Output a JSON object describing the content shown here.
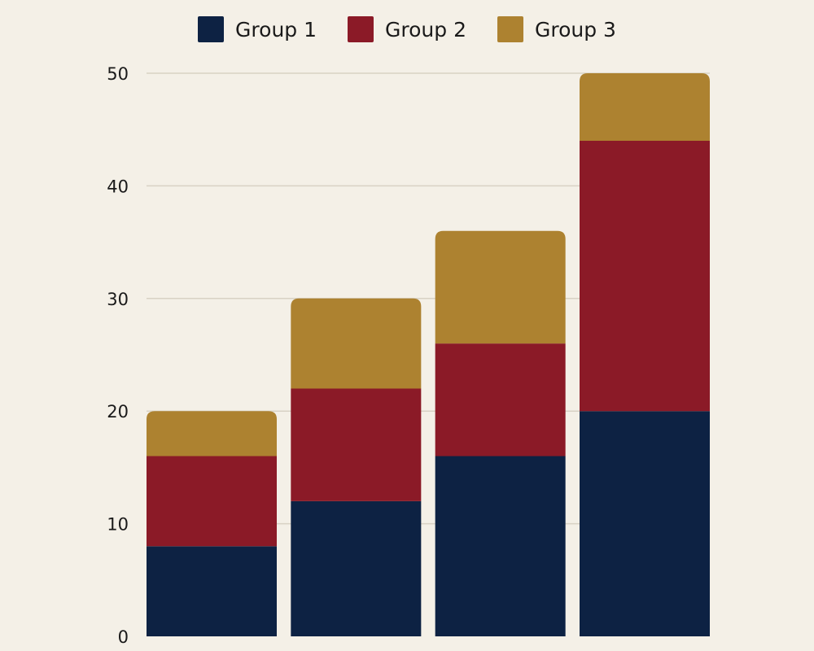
{
  "chart_data": {
    "type": "bar",
    "stacked": true,
    "categories": [
      "",
      "",
      "",
      ""
    ],
    "series": [
      {
        "name": "Group 1",
        "color": "#0d2243",
        "values": [
          8,
          12,
          16,
          20
        ]
      },
      {
        "name": "Group 2",
        "color": "#8b1a27",
        "values": [
          8,
          10,
          10,
          24
        ]
      },
      {
        "name": "Group 3",
        "color": "#ad8230",
        "values": [
          4,
          8,
          10,
          6
        ]
      }
    ],
    "title": "",
    "xlabel": "",
    "ylabel": "",
    "ylim": [
      0,
      50
    ],
    "yticks": [
      "0",
      "10",
      "20",
      "30",
      "40",
      "50"
    ],
    "grid": true,
    "legend_position": "top-center"
  },
  "colors": {
    "background": "#f4f0e7",
    "grid": "#d8d2c4",
    "text": "#1a1a1a"
  }
}
